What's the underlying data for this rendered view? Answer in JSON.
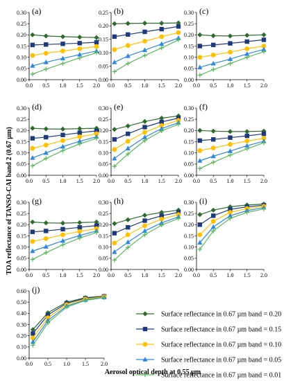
{
  "figure": {
    "ylabel": "TOA reflectance of TANSO-CAI band 2 (0.67 µm)",
    "xlabel": "Aerosol optical depth at 0.55 µm"
  },
  "chart_data": [
    {
      "id": "a",
      "type": "line",
      "label": "(a)",
      "xlim": [
        0,
        2
      ],
      "xticks": [
        "0.0",
        "0.5",
        "1.0",
        "1.5",
        "2.0"
      ],
      "ylim": [
        0,
        0.3
      ],
      "yticks": [
        "0.00",
        "0.05",
        "0.10",
        "0.15",
        "0.20",
        "0.25",
        "0.30"
      ],
      "x": [
        0.1,
        0.5,
        1.0,
        1.5,
        2.0
      ],
      "series": [
        {
          "name": "Surface reflectance in 0.67 µm band = 0.20",
          "values": [
            0.2,
            0.195,
            0.192,
            0.19,
            0.188
          ]
        },
        {
          "name": "Surface reflectance in 0.67 µm band = 0.15",
          "values": [
            0.155,
            0.157,
            0.16,
            0.163,
            0.167
          ]
        },
        {
          "name": "Surface reflectance in 0.67 µm band = 0.10",
          "values": [
            0.108,
            0.118,
            0.128,
            0.138,
            0.148
          ]
        },
        {
          "name": "Surface reflectance in 0.67 µm band = 0.05",
          "values": [
            0.062,
            0.078,
            0.095,
            0.112,
            0.128
          ]
        },
        {
          "name": "Surface reflectance in 0.67 µm band = 0.01",
          "values": [
            0.025,
            0.047,
            0.072,
            0.097,
            0.12
          ]
        }
      ]
    },
    {
      "id": "b",
      "type": "line",
      "label": "(b)",
      "xlim": [
        0,
        2
      ],
      "xticks": [
        "0.0",
        "0.5",
        "1.0",
        "1.5",
        "2.0"
      ],
      "ylim": [
        0,
        0.25
      ],
      "yticks": [
        "0.00",
        "0.05",
        "0.10",
        "0.15",
        "0.20",
        "0.25"
      ],
      "x": [
        0.1,
        0.5,
        1.0,
        1.5,
        2.0
      ],
      "series": [
        {
          "name": "Surface reflectance in 0.67 µm band = 0.20",
          "values": [
            0.208,
            0.209,
            0.21,
            0.21,
            0.211
          ]
        },
        {
          "name": "Surface reflectance in 0.67 µm band = 0.15",
          "values": [
            0.16,
            0.168,
            0.178,
            0.188,
            0.198
          ]
        },
        {
          "name": "Surface reflectance in 0.67 µm band = 0.10",
          "values": [
            0.112,
            0.127,
            0.143,
            0.16,
            0.175
          ]
        },
        {
          "name": "Surface reflectance in 0.67 µm band = 0.05",
          "values": [
            0.065,
            0.088,
            0.11,
            0.133,
            0.155
          ]
        },
        {
          "name": "Surface reflectance in 0.67 µm band = 0.01",
          "values": [
            0.03,
            0.06,
            0.09,
            0.118,
            0.148
          ]
        }
      ]
    },
    {
      "id": "c",
      "type": "line",
      "label": "(c)",
      "xlim": [
        0,
        2
      ],
      "xticks": [
        "0.0",
        "0.5",
        "1.0",
        "1.5",
        "2.0"
      ],
      "ylim": [
        0,
        0.3
      ],
      "yticks": [
        "0.00",
        "0.05",
        "0.10",
        "0.15",
        "0.20",
        "0.25",
        "0.30"
      ],
      "x": [
        0.1,
        0.5,
        1.0,
        1.5,
        2.0
      ],
      "series": [
        {
          "name": "Surface reflectance in 0.67 µm band = 0.20",
          "values": [
            0.2,
            0.196,
            0.195,
            0.198,
            0.2
          ]
        },
        {
          "name": "Surface reflectance in 0.67 µm band = 0.15",
          "values": [
            0.15,
            0.155,
            0.162,
            0.17,
            0.178
          ]
        },
        {
          "name": "Surface reflectance in 0.67 µm band = 0.10",
          "values": [
            0.1,
            0.11,
            0.123,
            0.138,
            0.15
          ]
        },
        {
          "name": "Surface reflectance in 0.67 µm band = 0.05",
          "values": [
            0.055,
            0.072,
            0.092,
            0.115,
            0.135
          ]
        },
        {
          "name": "Surface reflectance in 0.67 µm band = 0.01",
          "values": [
            0.02,
            0.045,
            0.072,
            0.1,
            0.125
          ]
        }
      ]
    },
    {
      "id": "d",
      "type": "line",
      "label": "(d)",
      "xlim": [
        0,
        2
      ],
      "xticks": [
        "0.0",
        "0.5",
        "1.0",
        "1.5",
        "2.0"
      ],
      "ylim": [
        0,
        0.3
      ],
      "yticks": [
        "0.00",
        "0.05",
        "0.10",
        "0.15",
        "0.20",
        "0.25",
        "0.30"
      ],
      "x": [
        0.1,
        0.5,
        1.0,
        1.5,
        2.0
      ],
      "series": [
        {
          "name": "Surface reflectance in 0.67 µm band = 0.20",
          "values": [
            0.21,
            0.207,
            0.206,
            0.208,
            0.21
          ]
        },
        {
          "name": "Surface reflectance in 0.67 µm band = 0.15",
          "values": [
            0.165,
            0.17,
            0.18,
            0.19,
            0.198
          ]
        },
        {
          "name": "Surface reflectance in 0.67 µm band = 0.10",
          "values": [
            0.12,
            0.135,
            0.155,
            0.172,
            0.185
          ]
        },
        {
          "name": "Surface reflectance in 0.67 µm band = 0.05",
          "values": [
            0.078,
            0.1,
            0.128,
            0.152,
            0.172
          ]
        },
        {
          "name": "Surface reflectance in 0.67 µm band = 0.01",
          "values": [
            0.042,
            0.075,
            0.11,
            0.14,
            0.165
          ]
        }
      ]
    },
    {
      "id": "e",
      "type": "line",
      "label": "(e)",
      "xlim": [
        0,
        2
      ],
      "xticks": [
        "0.0",
        "0.5",
        "1.0",
        "1.5",
        "2.0"
      ],
      "ylim": [
        0,
        0.3
      ],
      "yticks": [
        "0.00",
        "0.05",
        "0.10",
        "0.15",
        "0.20",
        "0.25",
        "0.30"
      ],
      "x": [
        0.1,
        0.5,
        1.0,
        1.5,
        2.0
      ],
      "series": [
        {
          "name": "Surface reflectance in 0.67 µm band = 0.20",
          "values": [
            0.205,
            0.22,
            0.24,
            0.255,
            0.265
          ]
        },
        {
          "name": "Surface reflectance in 0.67 µm band = 0.15",
          "values": [
            0.16,
            0.185,
            0.215,
            0.238,
            0.255
          ]
        },
        {
          "name": "Surface reflectance in 0.67 µm band = 0.10",
          "values": [
            0.115,
            0.152,
            0.192,
            0.222,
            0.245
          ]
        },
        {
          "name": "Surface reflectance in 0.67 µm band = 0.05",
          "values": [
            0.075,
            0.12,
            0.17,
            0.208,
            0.235
          ]
        },
        {
          "name": "Surface reflectance in 0.67 µm band = 0.01",
          "values": [
            0.04,
            0.095,
            0.155,
            0.198,
            0.228
          ]
        }
      ]
    },
    {
      "id": "f",
      "type": "line",
      "label": "(f)",
      "xlim": [
        0,
        2
      ],
      "xticks": [
        "0.0",
        "0.5",
        "1.0",
        "1.5",
        "2.0"
      ],
      "ylim": [
        0,
        0.3
      ],
      "yticks": [
        "0.00",
        "0.05",
        "0.10",
        "0.15",
        "0.20",
        "0.25",
        "0.30"
      ],
      "x": [
        0.1,
        0.5,
        1.0,
        1.5,
        2.0
      ],
      "series": [
        {
          "name": "Surface reflectance in 0.67 µm band = 0.20",
          "values": [
            0.2,
            0.197,
            0.195,
            0.195,
            0.197
          ]
        },
        {
          "name": "Surface reflectance in 0.67 µm band = 0.15",
          "values": [
            0.155,
            0.16,
            0.168,
            0.176,
            0.185
          ]
        },
        {
          "name": "Surface reflectance in 0.67 µm band = 0.10",
          "values": [
            0.11,
            0.122,
            0.138,
            0.153,
            0.165
          ]
        },
        {
          "name": "Surface reflectance in 0.67 µm band = 0.05",
          "values": [
            0.065,
            0.085,
            0.108,
            0.132,
            0.152
          ]
        },
        {
          "name": "Surface reflectance in 0.67 µm band = 0.01",
          "values": [
            0.03,
            0.058,
            0.09,
            0.118,
            0.145
          ]
        }
      ]
    },
    {
      "id": "g",
      "type": "line",
      "label": "(g)",
      "xlim": [
        0,
        2
      ],
      "xticks": [
        "0.0",
        "0.5",
        "1.0",
        "1.5",
        "2.0"
      ],
      "ylim": [
        0,
        0.3
      ],
      "yticks": [
        "0.00",
        "0.05",
        "0.10",
        "0.15",
        "0.20",
        "0.25",
        "0.30"
      ],
      "x": [
        0.1,
        0.5,
        1.0,
        1.5,
        2.0
      ],
      "series": [
        {
          "name": "Surface reflectance in 0.67 µm band = 0.20",
          "values": [
            0.212,
            0.208,
            0.207,
            0.209,
            0.212
          ]
        },
        {
          "name": "Surface reflectance in 0.67 µm band = 0.15",
          "values": [
            0.168,
            0.172,
            0.18,
            0.188,
            0.196
          ]
        },
        {
          "name": "Surface reflectance in 0.67 µm band = 0.10",
          "values": [
            0.125,
            0.138,
            0.155,
            0.17,
            0.182
          ]
        },
        {
          "name": "Surface reflectance in 0.67 µm band = 0.05",
          "values": [
            0.082,
            0.102,
            0.128,
            0.152,
            0.172
          ]
        },
        {
          "name": "Surface reflectance in 0.67 µm band = 0.01",
          "values": [
            0.045,
            0.075,
            0.11,
            0.14,
            0.165
          ]
        }
      ]
    },
    {
      "id": "h",
      "type": "line",
      "label": "(h)",
      "xlim": [
        0,
        2
      ],
      "xticks": [
        "0.0",
        "0.5",
        "1.0",
        "1.5",
        "2.0"
      ],
      "ylim": [
        0,
        0.3
      ],
      "yticks": [
        "0.00",
        "0.05",
        "0.10",
        "0.15",
        "0.20",
        "0.25",
        "0.30"
      ],
      "x": [
        0.1,
        0.5,
        1.0,
        1.5,
        2.0
      ],
      "series": [
        {
          "name": "Surface reflectance in 0.67 µm band = 0.20",
          "values": [
            0.205,
            0.222,
            0.242,
            0.255,
            0.265
          ]
        },
        {
          "name": "Surface reflectance in 0.67 µm band = 0.15",
          "values": [
            0.162,
            0.188,
            0.218,
            0.24,
            0.255
          ]
        },
        {
          "name": "Surface reflectance in 0.67 µm band = 0.10",
          "values": [
            0.118,
            0.155,
            0.195,
            0.225,
            0.245
          ]
        },
        {
          "name": "Surface reflectance in 0.67 µm band = 0.05",
          "values": [
            0.078,
            0.122,
            0.172,
            0.208,
            0.235
          ]
        },
        {
          "name": "Surface reflectance in 0.67 µm band = 0.01",
          "values": [
            0.042,
            0.098,
            0.155,
            0.198,
            0.228
          ]
        }
      ]
    },
    {
      "id": "i",
      "type": "line",
      "label": "(i)",
      "xlim": [
        0,
        2
      ],
      "xticks": [
        "0.0",
        "0.5",
        "1.0",
        "1.5",
        "2.0"
      ],
      "ylim": [
        0,
        0.3
      ],
      "yticks": [
        "0.00",
        "0.05",
        "0.10",
        "0.15",
        "0.20",
        "0.25",
        "0.30"
      ],
      "x": [
        0.1,
        0.5,
        1.0,
        1.5,
        2.0
      ],
      "series": [
        {
          "name": "Surface reflectance in 0.67 µm band = 0.20",
          "values": [
            0.245,
            0.265,
            0.28,
            0.288,
            0.292
          ]
        },
        {
          "name": "Surface reflectance in 0.67 µm band = 0.15",
          "values": [
            0.2,
            0.24,
            0.268,
            0.28,
            0.287
          ]
        },
        {
          "name": "Surface reflectance in 0.67 µm band = 0.10",
          "values": [
            0.155,
            0.215,
            0.255,
            0.272,
            0.282
          ]
        },
        {
          "name": "Surface reflectance in 0.67 µm band = 0.05",
          "values": [
            0.12,
            0.19,
            0.24,
            0.263,
            0.276
          ]
        },
        {
          "name": "Surface reflectance in 0.67 µm band = 0.01",
          "values": [
            0.09,
            0.172,
            0.228,
            0.255,
            0.27
          ]
        }
      ]
    },
    {
      "id": "j",
      "type": "line",
      "label": "(j)",
      "xlim": [
        0,
        2
      ],
      "xticks": [
        "0.0",
        "0.5",
        "1.0",
        "1.5",
        "2.0"
      ],
      "ylim": [
        0,
        0.6
      ],
      "yticks": [
        "0.00",
        "0.10",
        "0.20",
        "0.30",
        "0.40",
        "0.50",
        "0.60"
      ],
      "x": [
        0.1,
        0.5,
        1.0,
        1.5,
        2.0
      ],
      "series": [
        {
          "name": "Surface reflectance in 0.67 µm band = 0.20",
          "values": [
            0.255,
            0.405,
            0.5,
            0.54,
            0.555
          ]
        },
        {
          "name": "Surface reflectance in 0.67 µm band = 0.15",
          "values": [
            0.22,
            0.385,
            0.49,
            0.535,
            0.552
          ]
        },
        {
          "name": "Surface reflectance in 0.67 µm band = 0.10",
          "values": [
            0.18,
            0.36,
            0.478,
            0.528,
            0.548
          ]
        },
        {
          "name": "Surface reflectance in 0.67 µm band = 0.05",
          "values": [
            0.145,
            0.335,
            0.465,
            0.52,
            0.543
          ]
        },
        {
          "name": "Surface reflectance in 0.67 µm band = 0.01",
          "values": [
            0.115,
            0.315,
            0.455,
            0.515,
            0.54
          ]
        }
      ]
    }
  ],
  "legend": {
    "placement": "bottom-right",
    "items": [
      {
        "label": "Surface reflectance in 0.67 µm band = 0.20",
        "color": "#2E6B2E",
        "marker": "diamond"
      },
      {
        "label": "Surface reflectance in 0.67 µm band = 0.15",
        "color": "#1F3A7A",
        "marker": "square"
      },
      {
        "label": "Surface reflectance in 0.67 µm band = 0.10",
        "color": "#FFC000",
        "marker": "circle"
      },
      {
        "label": "Surface reflectance in 0.67 µm band = 0.05",
        "color": "#2E86DE",
        "marker": "triangle"
      },
      {
        "label": "Surface reflectance in 0.67 µm band = 0.01",
        "color": "#5DB85D",
        "marker": "plus"
      }
    ]
  }
}
